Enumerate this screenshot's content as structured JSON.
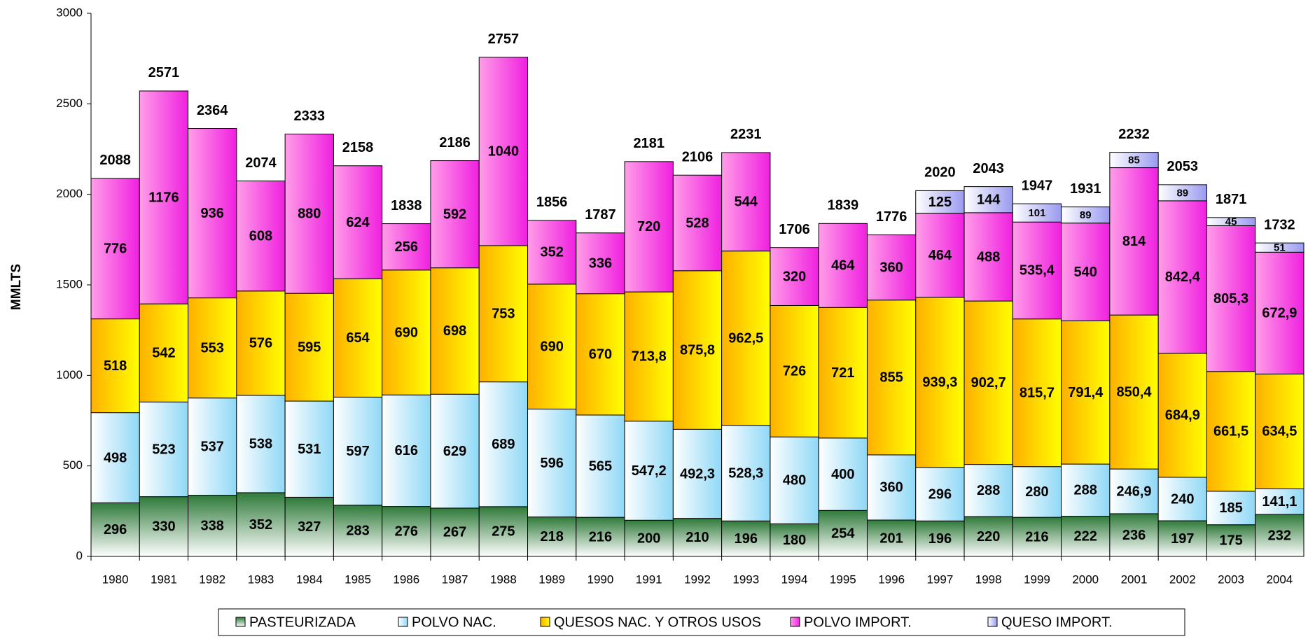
{
  "chart_data": {
    "type": "stacked_bar",
    "y_label": "MMLTS",
    "categories": [
      "1980",
      "1981",
      "1982",
      "1983",
      "1984",
      "1985",
      "1986",
      "1987",
      "1988",
      "1989",
      "1990",
      "1991",
      "1992",
      "1993",
      "1994",
      "1995",
      "1996",
      "1997",
      "1998",
      "1999",
      "2000",
      "2001",
      "2002",
      "2003",
      "2004"
    ],
    "ylim": [
      0,
      3000
    ],
    "yticks": [
      0,
      500,
      1000,
      1500,
      2000,
      2500,
      3000
    ],
    "series": [
      {
        "name": "PASTEURIZADA",
        "color": "#2f7a3a",
        "values": [
          296,
          330,
          338,
          352,
          327,
          283,
          276,
          267,
          275,
          218,
          216,
          200,
          210,
          196,
          180,
          254,
          201,
          196,
          220,
          216,
          222,
          236,
          197,
          175,
          232
        ]
      },
      {
        "name": "POLVO NAC.",
        "color": "#8fd8f6",
        "values": [
          498,
          523,
          537,
          538,
          531,
          597,
          616,
          629,
          689,
          596,
          565,
          547.2,
          492.3,
          528.3,
          480,
          400,
          360,
          296,
          288,
          280,
          288,
          246.9,
          240,
          185,
          141.1
        ],
        "value_labels": [
          "498",
          "523",
          "537",
          "538",
          "531",
          "597",
          "616",
          "629",
          "689",
          "596",
          "565",
          "547,2",
          "492,3",
          "528,3",
          "480",
          "400",
          "360",
          "296",
          "288",
          "280",
          "288",
          "246,9",
          "240",
          "185",
          "141,1"
        ]
      },
      {
        "name": "QUESOS NAC. Y OTROS USOS",
        "color": "#ffb000",
        "values": [
          518,
          542,
          553,
          576,
          595,
          654,
          690,
          698,
          753,
          690,
          670,
          713.8,
          875.8,
          962.5,
          726,
          721,
          855,
          939.3,
          902.7,
          815.7,
          791.4,
          850.4,
          684.9,
          661.5,
          634.5
        ],
        "value_labels": [
          "518",
          "542",
          "553",
          "576",
          "595",
          "654",
          "690",
          "698",
          "753",
          "690",
          "670",
          "713,8",
          "875,8",
          "962,5",
          "726",
          "721",
          "855",
          "939,3",
          "902,7",
          "815,7",
          "791,4",
          "850,4",
          "684,9",
          "661,5",
          "634,5"
        ]
      },
      {
        "name": "POLVO IMPORT.",
        "color": "#f020e0",
        "values": [
          776,
          1176,
          936,
          608,
          880,
          624,
          256,
          592,
          1040,
          352,
          336,
          720,
          528,
          544,
          320,
          464,
          360,
          464,
          488,
          535.4,
          540,
          814,
          842.4,
          805.3,
          672.9
        ],
        "value_labels": [
          "776",
          "1176",
          "936",
          "608",
          "880",
          "624",
          "256",
          "592",
          "1040",
          "352",
          "336",
          "720",
          "528",
          "544",
          "320",
          "464",
          "360",
          "464",
          "488",
          "535,4",
          "540",
          "814",
          "842,4",
          "805,3",
          "672,9"
        ]
      },
      {
        "name": "QUESO IMPORT.",
        "color": "#9a9af0",
        "values": [
          null,
          null,
          null,
          null,
          null,
          null,
          null,
          null,
          null,
          null,
          null,
          null,
          null,
          null,
          null,
          null,
          null,
          125,
          144,
          101,
          89,
          85,
          89,
          45,
          51
        ]
      }
    ],
    "totals": [
      2088,
      2571,
      2364,
      2074,
      2333,
      2158,
      1838,
      2186,
      2757,
      1856,
      1787,
      2181,
      2106,
      2231,
      1706,
      1839,
      1776,
      2020,
      2043,
      1947,
      1931,
      2232,
      2053,
      1871,
      1732
    ]
  }
}
